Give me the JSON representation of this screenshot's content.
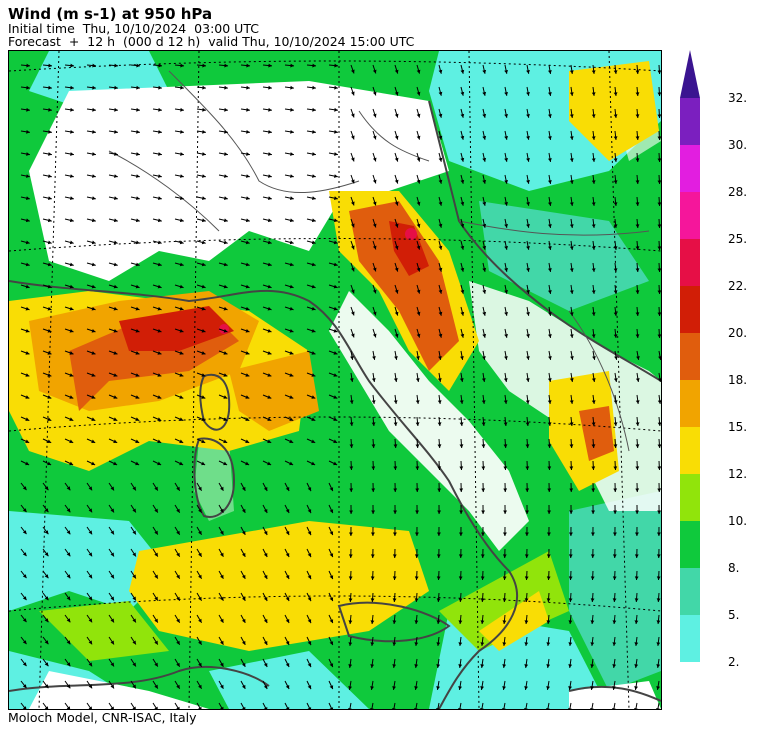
{
  "header": {
    "title": "Wind (m s-1) at 950 hPa",
    "initial": "Initial time  Thu, 10/10/2024  03:00 UTC",
    "forecast": "Forecast  +  12 h  (000 d 12 h)  valid Thu, 10/10/2024 15:00 UTC"
  },
  "footer": "Moloch Model, CNR-ISAC, Italy",
  "colorbar": {
    "levels": [
      "32.",
      "30.",
      "28.",
      "25.",
      "22.",
      "20.",
      "18.",
      "15.",
      "12.",
      "10.",
      "8.",
      "5.",
      "2."
    ],
    "colors": [
      "#7b1fbf",
      "#e21ee0",
      "#f5169b",
      "#e60f46",
      "#d11e06",
      "#e05d0d",
      "#f1a400",
      "#f9dd05",
      "#91e40b",
      "#0fc93c",
      "#42d7a8",
      "#5ef0e2"
    ],
    "arrow_color": "#3a1490"
  },
  "map": {
    "ocean_color": "#ffffff",
    "coast_color": "#444444",
    "border_color": "#555555"
  }
}
